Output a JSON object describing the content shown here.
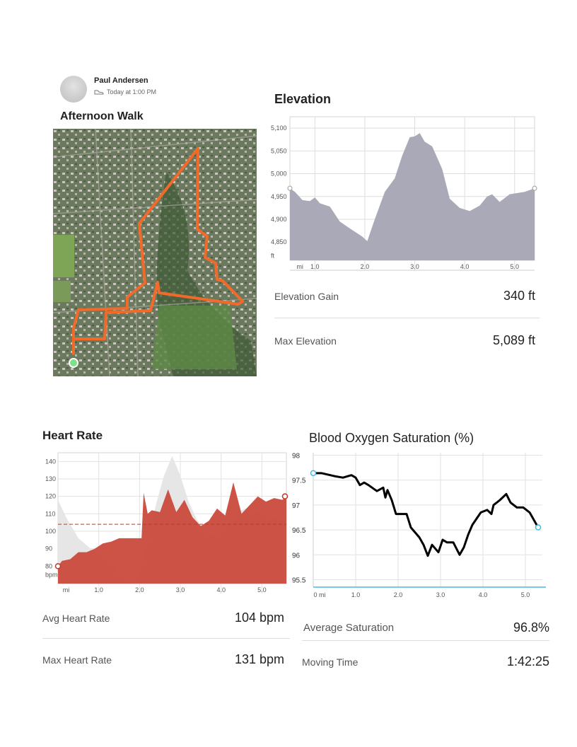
{
  "header": {
    "user_name": "Paul Andersen",
    "timestamp": "Today at 1:00 PM",
    "activity_title": "Afternoon Walk"
  },
  "elevation": {
    "title": "Elevation",
    "stats": [
      {
        "label": "Elevation Gain",
        "value": "340 ft"
      },
      {
        "label": "Max Elevation",
        "value": "5,089 ft"
      }
    ]
  },
  "heart_rate": {
    "title": "Heart Rate",
    "stats": [
      {
        "label": "Avg Heart Rate",
        "value": "104 bpm"
      },
      {
        "label": "Max Heart Rate",
        "value": "131 bpm"
      }
    ]
  },
  "spo2": {
    "title": "Blood Oxygen Saturation (%)",
    "stats": [
      {
        "label": "Average Saturation",
        "value": "96.8%"
      },
      {
        "label": "Moving Time",
        "value": "1:42:25"
      }
    ]
  },
  "colors": {
    "route": "#f26a2a",
    "elevation_fill": "#a9a9b8",
    "hr_fill": "#c94a3c",
    "hr_bg_fill": "#e6e6e6",
    "spo2_line": "#000000",
    "endpoint": "#48b7e0"
  },
  "chart_data": [
    {
      "type": "area",
      "title": "Elevation",
      "xlabel": "mi",
      "ylabel": "ft",
      "x_ticks": [
        "mi",
        "1.0",
        "2.0",
        "3.0",
        "4.0",
        "5.0"
      ],
      "y_ticks": [
        "5,100",
        "5,050",
        "5,000",
        "4,950",
        "4,900",
        "4,850",
        "ft"
      ],
      "xlim": [
        0.5,
        5.4
      ],
      "ylim": [
        4810,
        5125
      ],
      "x": [
        0.5,
        0.6,
        0.75,
        0.9,
        1.0,
        1.1,
        1.3,
        1.5,
        1.7,
        1.95,
        2.05,
        2.2,
        2.4,
        2.6,
        2.75,
        2.9,
        3.0,
        3.1,
        3.2,
        3.35,
        3.55,
        3.7,
        3.9,
        4.1,
        4.3,
        4.45,
        4.55,
        4.7,
        4.9,
        5.2,
        5.4
      ],
      "y": [
        4968,
        4960,
        4942,
        4940,
        4948,
        4935,
        4928,
        4895,
        4880,
        4862,
        4852,
        4900,
        4960,
        4990,
        5040,
        5080,
        5082,
        5089,
        5070,
        5060,
        5010,
        4945,
        4925,
        4918,
        4930,
        4950,
        4955,
        4938,
        4955,
        4960,
        4968
      ]
    },
    {
      "type": "area",
      "title": "Heart Rate",
      "xlabel": "mi",
      "ylabel": "bpm",
      "x_ticks": [
        "mi",
        "1.0",
        "2.0",
        "3.0",
        "4.0",
        "5.0"
      ],
      "y_ticks": [
        "140",
        "130",
        "120",
        "110",
        "100",
        "90",
        "80",
        "bpm"
      ],
      "xlim": [
        0,
        5.6
      ],
      "ylim": [
        70,
        145
      ],
      "average": 104,
      "series": [
        {
          "name": "Heart Rate",
          "x": [
            0,
            0.1,
            0.3,
            0.5,
            0.7,
            0.9,
            1.1,
            1.3,
            1.5,
            1.7,
            1.95,
            2.05,
            2.1,
            2.2,
            2.3,
            2.5,
            2.7,
            2.9,
            3.1,
            3.3,
            3.5,
            3.7,
            3.9,
            4.1,
            4.3,
            4.5,
            4.7,
            4.9,
            5.1,
            5.3,
            5.5,
            5.6
          ],
          "y": [
            80,
            83,
            84,
            88,
            88,
            90,
            93,
            94,
            96,
            96,
            96,
            96,
            122,
            110,
            112,
            111,
            124,
            111,
            118,
            108,
            103,
            106,
            113,
            109,
            128,
            110,
            115,
            120,
            117,
            119,
            118,
            120
          ]
        },
        {
          "name": "Background",
          "x": [
            0,
            0.2,
            0.5,
            0.8,
            1.0,
            1.3,
            1.5,
            1.8,
            2.0,
            2.2,
            2.4,
            2.6,
            2.8,
            3.0,
            3.2,
            3.4,
            3.6,
            3.8,
            4.0,
            4.2,
            4.4,
            4.6,
            4.8,
            5.0,
            5.3,
            5.6
          ],
          "y": [
            118,
            108,
            96,
            90,
            88,
            82,
            75,
            70,
            75,
            95,
            115,
            132,
            143,
            132,
            117,
            107,
            100,
            97,
            100,
            106,
            111,
            113,
            111,
            110,
            108,
            106
          ]
        }
      ]
    },
    {
      "type": "line",
      "title": "Blood Oxygen Saturation (%)",
      "x_ticks": [
        "0 mi",
        "1.0",
        "2.0",
        "3.0",
        "4.0",
        "5.0"
      ],
      "y_ticks": [
        "98",
        "97.5",
        "97",
        "96.5",
        "96",
        "95.5"
      ],
      "xlim": [
        0,
        5.4
      ],
      "ylim": [
        95.35,
        98.05
      ],
      "x": [
        0,
        0.2,
        0.5,
        0.7,
        0.9,
        1.0,
        1.1,
        1.2,
        1.3,
        1.5,
        1.65,
        1.7,
        1.75,
        1.85,
        1.95,
        2.2,
        2.3,
        2.5,
        2.6,
        2.7,
        2.8,
        2.95,
        3.05,
        3.15,
        3.3,
        3.45,
        3.55,
        3.65,
        3.75,
        3.95,
        4.1,
        4.2,
        4.25,
        4.4,
        4.55,
        4.65,
        4.8,
        4.95,
        5.1,
        5.2,
        5.3
      ],
      "y": [
        97.64,
        97.64,
        97.58,
        97.55,
        97.6,
        97.55,
        97.4,
        97.45,
        97.4,
        97.28,
        97.35,
        97.15,
        97.3,
        97.1,
        96.82,
        96.82,
        96.55,
        96.35,
        96.2,
        95.98,
        96.2,
        96.05,
        96.3,
        96.25,
        96.25,
        96.0,
        96.15,
        96.4,
        96.6,
        96.85,
        96.9,
        96.82,
        97.0,
        97.1,
        97.22,
        97.05,
        96.95,
        96.95,
        96.85,
        96.7,
        96.55
      ]
    }
  ]
}
